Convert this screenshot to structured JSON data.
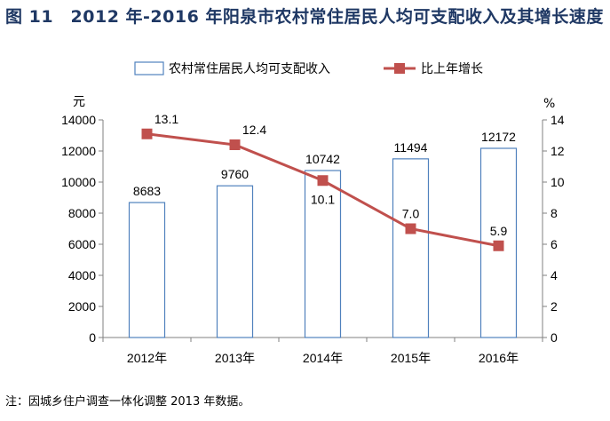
{
  "title": "图 11　2012 年-2016 年阳泉市农村常住居民人均可支配收入及其增长速度",
  "note": "注：因城乡住户调查一体化调整 2013 年数据。",
  "chart_data": {
    "type": "bar+line",
    "categories": [
      "2012年",
      "2013年",
      "2014年",
      "2015年",
      "2016年"
    ],
    "series": [
      {
        "name": "农村常住居民人均可支配收入",
        "type": "bar",
        "axis": "left",
        "values": [
          8683,
          9760,
          10742,
          11494,
          12172
        ],
        "labels": [
          "8683",
          "9760",
          "10742",
          "11494",
          "12172"
        ],
        "fill": "#ffffff",
        "stroke": "#4f81bd"
      },
      {
        "name": "比上年增长",
        "type": "line",
        "axis": "right",
        "values": [
          13.1,
          12.4,
          10.1,
          7.0,
          5.9
        ],
        "labels": [
          "13.1",
          "12.4",
          "10.1",
          "7.0",
          "5.9"
        ],
        "color": "#c0504d"
      }
    ],
    "y_left": {
      "unit": "元",
      "min": 0,
      "max": 14000,
      "ticks": [
        0,
        2000,
        4000,
        6000,
        8000,
        10000,
        12000,
        14000
      ]
    },
    "y_right": {
      "unit": "%",
      "min": 0,
      "max": 14,
      "ticks": [
        0,
        2,
        4,
        6,
        8,
        10,
        12,
        14
      ]
    },
    "legend_position": "top",
    "grid": false
  }
}
